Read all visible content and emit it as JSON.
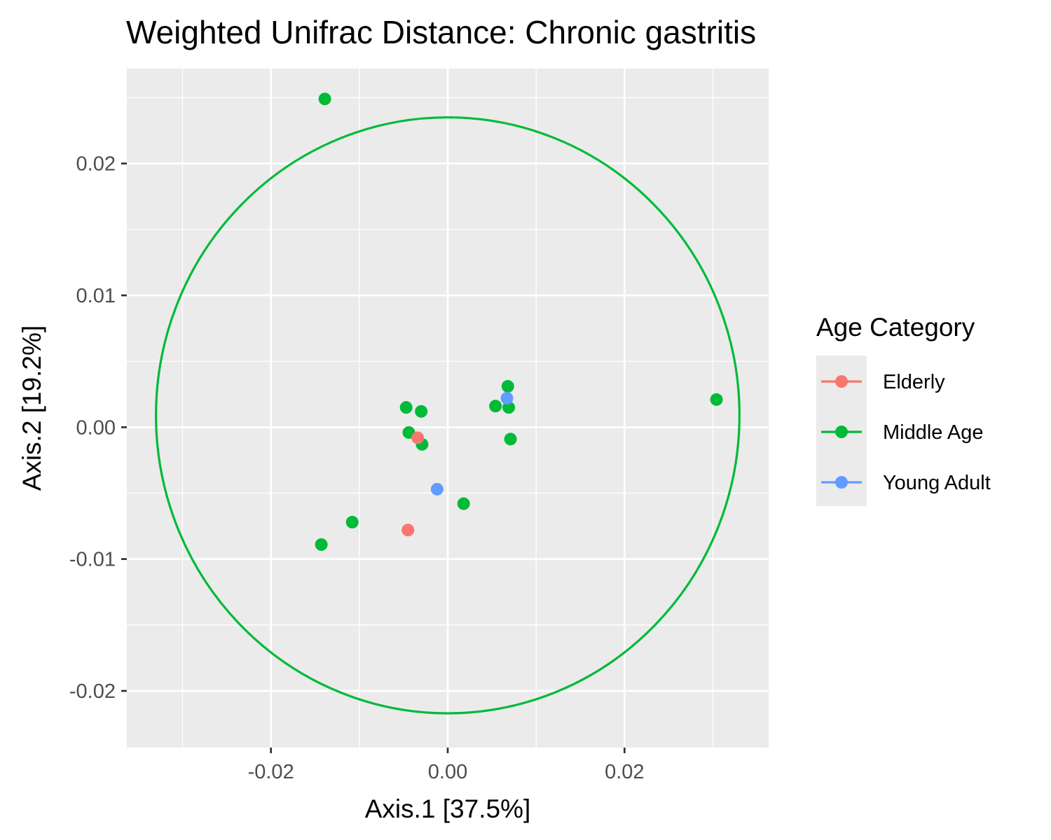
{
  "chart_data": {
    "type": "scatter",
    "title": "Weighted Unifrac Distance: Chronic gastritis",
    "xlabel": "Axis.1   [37.5%]",
    "ylabel": "Axis.2   [19.2%]",
    "xlim": [
      -0.0363,
      0.0363
    ],
    "ylim": [
      -0.0243,
      0.0272
    ],
    "xticks": [
      -0.02,
      0.0,
      0.02
    ],
    "xtick_labels": [
      "-0.02",
      "0.00",
      "0.02"
    ],
    "yticks": [
      -0.02,
      -0.01,
      0.0,
      0.01,
      0.02
    ],
    "ytick_labels": [
      "-0.02",
      "-0.01",
      "0.00",
      "0.01",
      "0.02"
    ],
    "grid": true,
    "legend": {
      "title": "Age Category",
      "position": "right",
      "entries": [
        {
          "label": "Elderly",
          "color": "#F8766D"
        },
        {
          "label": "Middle Age",
          "color": "#00BA38"
        },
        {
          "label": "Young Adult",
          "color": "#619CFF"
        }
      ]
    },
    "series": [
      {
        "name": "Middle Age",
        "color": "#00BA38",
        "points": [
          {
            "x": -0.0139,
            "y": 0.0249
          },
          {
            "x": 0.0304,
            "y": 0.0021
          },
          {
            "x": 0.0068,
            "y": 0.0031
          },
          {
            "x": 0.0054,
            "y": 0.0016
          },
          {
            "x": 0.0069,
            "y": 0.0015
          },
          {
            "x": 0.0071,
            "y": -0.0009
          },
          {
            "x": -0.0047,
            "y": 0.0015
          },
          {
            "x": -0.003,
            "y": 0.0012
          },
          {
            "x": -0.0044,
            "y": -0.0004
          },
          {
            "x": -0.0029,
            "y": -0.0013
          },
          {
            "x": 0.0018,
            "y": -0.0058
          },
          {
            "x": -0.0108,
            "y": -0.0072
          },
          {
            "x": -0.0143,
            "y": -0.0089
          }
        ]
      },
      {
        "name": "Elderly",
        "color": "#F8766D",
        "points": [
          {
            "x": -0.0034,
            "y": -0.0008
          },
          {
            "x": -0.0045,
            "y": -0.0078
          }
        ]
      },
      {
        "name": "Young Adult",
        "color": "#619CFF",
        "points": [
          {
            "x": 0.0067,
            "y": 0.0022
          },
          {
            "x": -0.0012,
            "y": -0.0047
          }
        ]
      }
    ],
    "ellipses": [
      {
        "series": "Middle Age",
        "color": "#00BA38",
        "center": [
          0.0,
          0.0009
        ],
        "rx": 0.033,
        "ry": 0.0226
      }
    ]
  }
}
